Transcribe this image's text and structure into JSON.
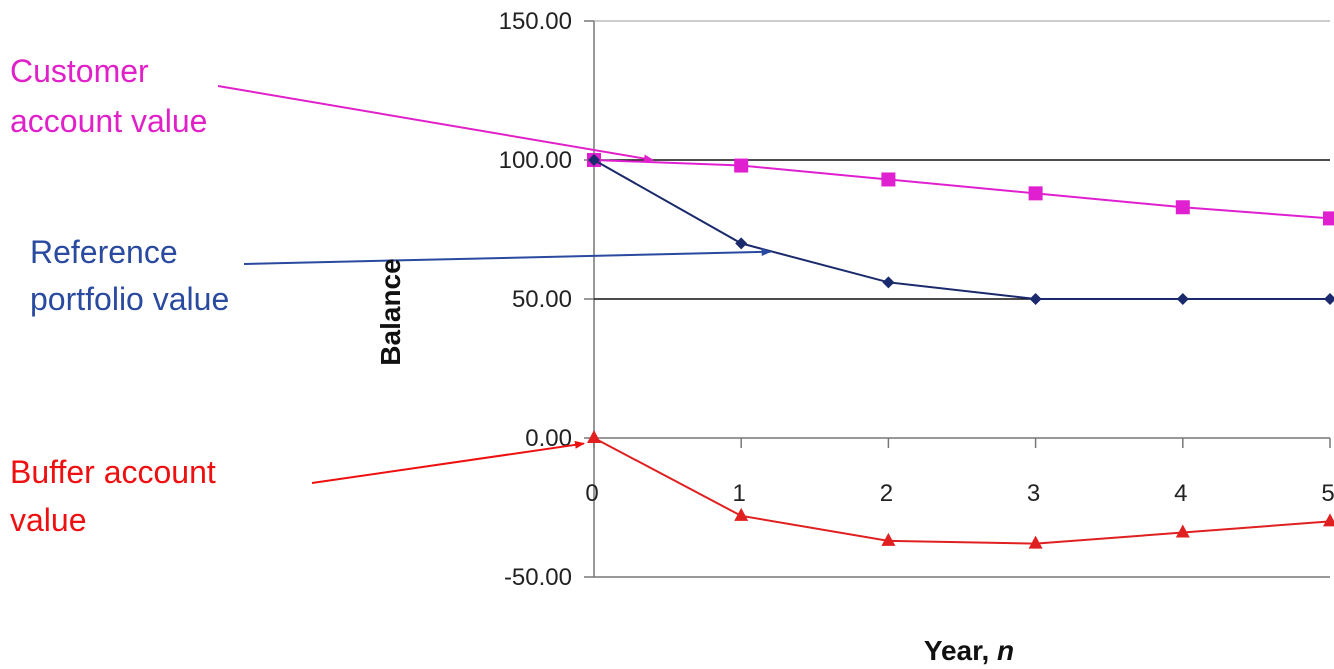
{
  "chart_data": {
    "type": "line",
    "xlabel": "Year, n",
    "xlabel_prefix": "Year, ",
    "xlabel_var": "n",
    "ylabel": "Balance",
    "x": [
      0,
      1,
      2,
      3,
      4,
      5
    ],
    "x_tick_labels": [
      "0",
      "1",
      "2",
      "3",
      "4",
      "5"
    ],
    "ylim": [
      -50,
      150
    ],
    "y_ticks": [
      -50,
      0,
      50,
      100,
      150
    ],
    "y_tick_labels": [
      "-50.00",
      "0.00",
      "50.00",
      "100.00",
      "150.00"
    ],
    "grid": "horizontal lines at 50 and 100",
    "series": [
      {
        "key": "customer",
        "color": "#e020d0",
        "marker": "square",
        "values": [
          100,
          98,
          93,
          88,
          83,
          79
        ]
      },
      {
        "key": "reference",
        "color": "#1a2a6c",
        "marker": "diamond",
        "values": [
          100,
          70,
          56,
          50,
          50,
          50
        ]
      },
      {
        "key": "buffer",
        "color": "#e02020",
        "marker": "triangle",
        "values": [
          0,
          -28,
          -37,
          -38,
          -34,
          -30
        ]
      }
    ],
    "annotations": [
      {
        "key": "customer",
        "lines": [
          "Customer",
          "account value"
        ],
        "color": "#e020c8",
        "target_x": 0.4,
        "target_y": 100
      },
      {
        "key": "reference",
        "lines": [
          "Reference",
          "portfolio value"
        ],
        "color": "#2a4aa0",
        "target_x": 1.2,
        "target_y": 67
      },
      {
        "key": "buffer",
        "lines": [
          "Buffer account",
          "value"
        ],
        "color": "#ee1010",
        "target_x": 0,
        "target_y": -2
      }
    ]
  }
}
